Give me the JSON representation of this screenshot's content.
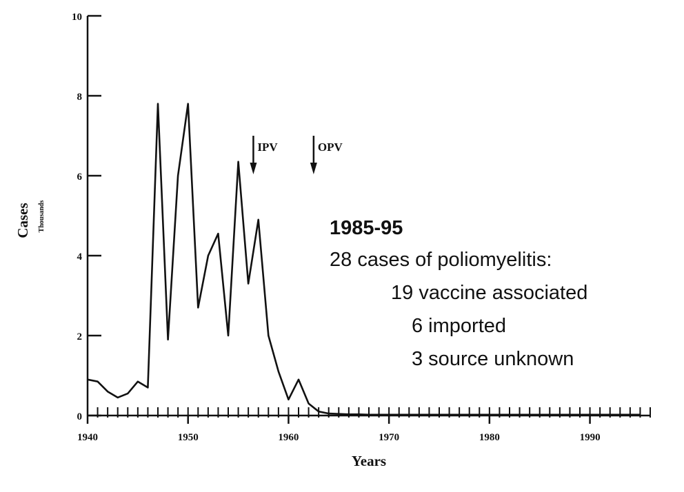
{
  "chart_data": {
    "type": "line",
    "xlabel": "Years",
    "ylabel": "Cases",
    "ylabel_unit": "Thousands",
    "xlim": [
      1940,
      1996
    ],
    "ylim": [
      0,
      10
    ],
    "x_ticks": [
      1940,
      1950,
      1960,
      1970,
      1980,
      1990
    ],
    "y_ticks": [
      0,
      2,
      4,
      6,
      8,
      10
    ],
    "grid": false,
    "series": [
      {
        "x": [
          1940,
          1941,
          1942,
          1943,
          1944,
          1945,
          1946,
          1947,
          1948,
          1949,
          1950,
          1951,
          1952,
          1953,
          1954,
          1955,
          1956,
          1957,
          1958,
          1959,
          1960,
          1961,
          1962,
          1963,
          1964,
          1965,
          1966,
          1967,
          1968,
          1969,
          1970,
          1975,
          1980,
          1985,
          1990,
          1995
        ],
        "values": [
          0.9,
          0.85,
          0.6,
          0.45,
          0.55,
          0.85,
          0.7,
          7.8,
          1.9,
          6.0,
          7.8,
          2.7,
          4.0,
          4.55,
          2.0,
          6.35,
          3.3,
          4.9,
          2.0,
          1.1,
          0.4,
          0.9,
          0.3,
          0.1,
          0.05,
          0.04,
          0.03,
          0.03,
          0.02,
          0.02,
          0.02,
          0.02,
          0.02,
          0.02,
          0.02,
          0.02
        ]
      }
    ],
    "annotations": [
      {
        "label": "IPV",
        "x": 1956.5
      },
      {
        "label": "OPV",
        "x": 1962.5
      }
    ],
    "note": {
      "title": "1985-95",
      "lines": [
        "28 cases of poliomyelitis:",
        "19 vaccine associated",
        "6 imported",
        "3 source unknown"
      ]
    }
  }
}
